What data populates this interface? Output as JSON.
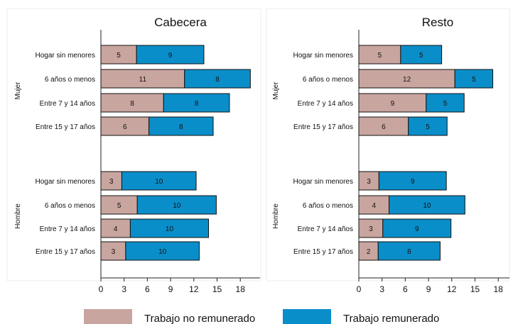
{
  "chart_data": {
    "type": "bar",
    "orientation": "horizontal",
    "stacked": true,
    "xlim": [
      0,
      20
    ],
    "xticks": [
      0,
      3,
      6,
      9,
      12,
      15,
      18
    ],
    "colors": {
      "unpaid": "#c9a59f",
      "paid": "#0a8ec9",
      "border": "#111111"
    },
    "legend": {
      "placement": "bottom",
      "entries": [
        "Trabajo no remunerado",
        "Trabajo remunerado"
      ]
    },
    "groups": [
      "Mujer",
      "Hombre"
    ],
    "categories": [
      "Hogar sin menores",
      "6 años o menos",
      "Entre 7 y 14 años",
      "Entre 15 y 17 años"
    ],
    "panels": [
      {
        "title": "Cabecera",
        "series": [
          {
            "name": "Trabajo no remunerado",
            "values": {
              "Mujer": [
                4.6,
                10.8,
                8.1,
                6.2
              ],
              "Hombre": [
                2.7,
                4.7,
                3.8,
                3.2
              ]
            },
            "labels": {
              "Mujer": [
                "5",
                "11",
                "8",
                "6"
              ],
              "Hombre": [
                "3",
                "5",
                "4",
                "3"
              ]
            }
          },
          {
            "name": "Trabajo remunerado",
            "values": {
              "Mujer": [
                8.7,
                8.5,
                8.5,
                8.3
              ],
              "Hombre": [
                9.6,
                10.2,
                10.1,
                9.5
              ]
            },
            "labels": {
              "Mujer": [
                "9",
                "8",
                "8",
                "8"
              ],
              "Hombre": [
                "10",
                "10",
                "10",
                "10"
              ]
            }
          }
        ]
      },
      {
        "title": "Resto",
        "series": [
          {
            "name": "Trabajo no remunerado",
            "values": {
              "Mujer": [
                5.4,
                12.4,
                8.7,
                6.4
              ],
              "Hombre": [
                2.6,
                3.9,
                3.1,
                2.5
              ]
            },
            "labels": {
              "Mujer": [
                "5",
                "12",
                "9",
                "6"
              ],
              "Hombre": [
                "3",
                "4",
                "3",
                "2"
              ]
            }
          },
          {
            "name": "Trabajo remunerado",
            "values": {
              "Mujer": [
                5.3,
                4.9,
                4.9,
                5.0
              ],
              "Hombre": [
                8.7,
                9.8,
                8.8,
                8.0
              ]
            },
            "labels": {
              "Mujer": [
                "5",
                "5",
                "5",
                "5"
              ],
              "Hombre": [
                "9",
                "10",
                "9",
                "8"
              ]
            }
          }
        ]
      }
    ]
  }
}
